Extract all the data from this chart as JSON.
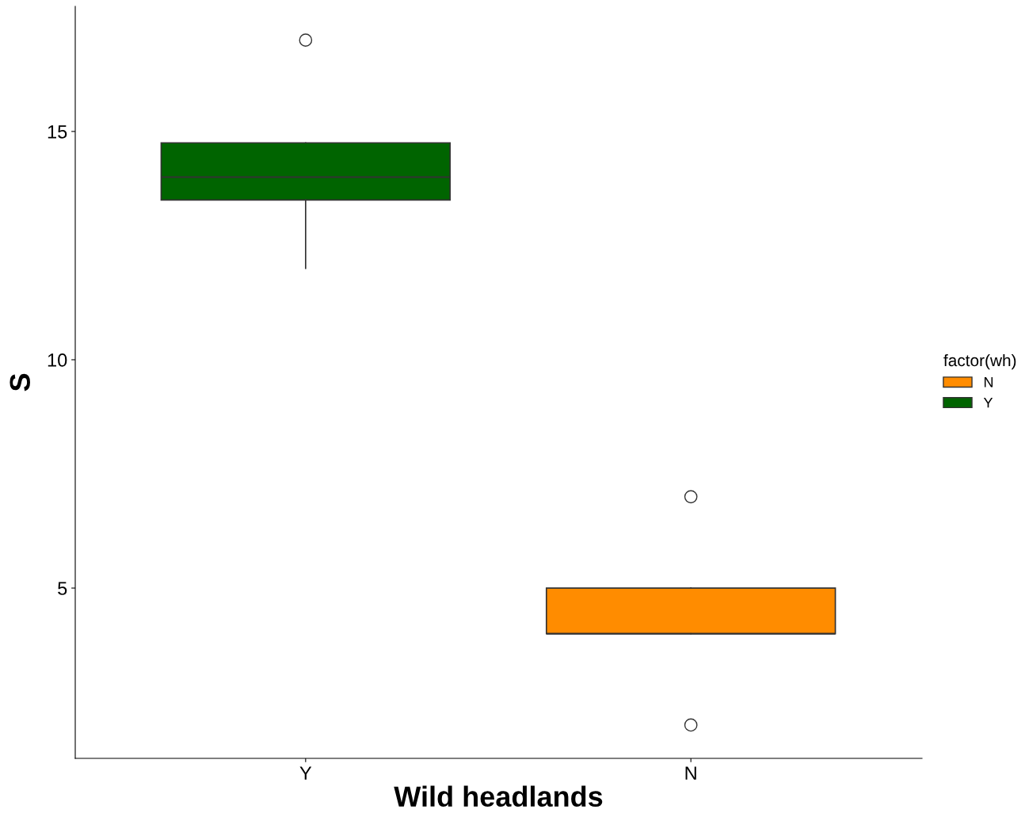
{
  "chart_data": {
    "type": "box",
    "xlabel": "Wild headlands",
    "ylabel": "S",
    "legend_title": "factor(wh)",
    "categories": [
      "Y",
      "N"
    ],
    "series": [
      {
        "name": "N",
        "color": "#ff8c00",
        "boxes": [
          null,
          {
            "low": 4,
            "q1": 4,
            "median": 4,
            "q3": 5,
            "high": 5,
            "outliers": [
              7,
              2
            ]
          }
        ]
      },
      {
        "name": "Y",
        "color": "#006400",
        "boxes": [
          {
            "low": 12,
            "q1": 13.5,
            "median": 14,
            "q3": 14.75,
            "high": 14.75,
            "outliers": [
              17
            ]
          },
          null
        ]
      }
    ],
    "ylim": [
      1.27,
      17.74
    ],
    "yticks": [
      5,
      10,
      15
    ],
    "grid": false,
    "legend": "right",
    "marker": "circle"
  }
}
